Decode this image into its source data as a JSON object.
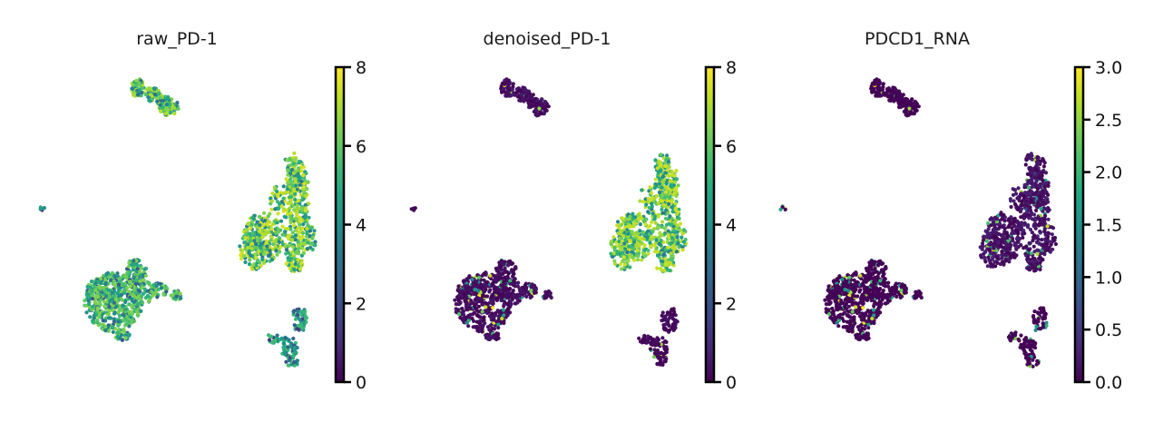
{
  "chart_data": [
    {
      "type": "scatter",
      "title": "raw_PD-1",
      "colormap": "viridis",
      "colorbar": {
        "min": 0,
        "max": 8,
        "ticks": [
          "0",
          "2",
          "4",
          "6",
          "8"
        ]
      },
      "axes_visible": false,
      "cluster_levels": {
        "top": 7.2,
        "leftblob": 6.5,
        "rightblob": 7.5,
        "bottom": 5.5,
        "dot": 5.0
      }
    },
    {
      "type": "scatter",
      "title": "denoised_PD-1",
      "colormap": "viridis",
      "colorbar": {
        "min": 0,
        "max": 8,
        "ticks": [
          "0",
          "2",
          "4",
          "6",
          "8"
        ]
      },
      "axes_visible": false,
      "cluster_levels": {
        "top": 0.6,
        "leftblob": 0.5,
        "rightblob": 7.4,
        "bottom": 0.4,
        "dot": 0.2
      }
    },
    {
      "type": "scatter",
      "title": "PDCD1_RNA",
      "colormap": "viridis",
      "colorbar": {
        "min": 0,
        "max": 3,
        "ticks": [
          "0.0",
          "0.5",
          "1.0",
          "1.5",
          "2.0",
          "2.5",
          "3.0"
        ]
      },
      "axes_visible": false,
      "cluster_levels": {
        "top": 0.05,
        "leftblob": 0.05,
        "rightblob": 0.3,
        "bottom": 0.05,
        "dot": 0.0
      }
    }
  ],
  "colors": {
    "viridis_low": "#440154",
    "viridis_mid": "#21918c",
    "viridis_high": "#fde725"
  }
}
